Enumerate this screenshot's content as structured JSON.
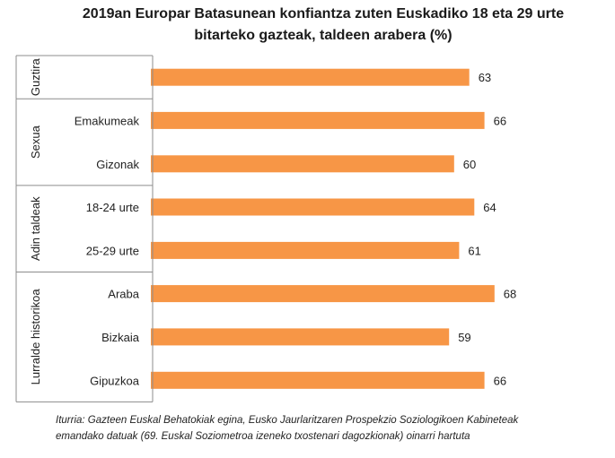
{
  "chart_data": {
    "type": "bar",
    "orientation": "horizontal",
    "title_line1": "2019an Europar Batasunean konfiantza zuten Euskadiko 18 eta 29 urte",
    "title_line2": "bitarteko gazteak, taldeen arabera (%)",
    "groups": [
      {
        "name": "Guztira",
        "categories": [
          ""
        ]
      },
      {
        "name": "Sexua",
        "categories": [
          "Emakumeak",
          "Gizonak"
        ]
      },
      {
        "name": "Adin taldeak",
        "categories": [
          "18-24 urte",
          "25-29 urte"
        ]
      },
      {
        "name": "Lurralde historikoa",
        "categories": [
          "Araba",
          "Bizkaia",
          "Gipuzkoa"
        ]
      }
    ],
    "categories": [
      "",
      "Emakumeak",
      "Gizonak",
      "18-24 urte",
      "25-29 urte",
      "Araba",
      "Bizkaia",
      "Gipuzkoa"
    ],
    "values": [
      63,
      66,
      60,
      64,
      61,
      68,
      59,
      66
    ],
    "data_labels": [
      "63",
      "66",
      "60",
      "64",
      "61",
      "68",
      "59",
      "66"
    ],
    "bar_color": "#F79646",
    "grid": false,
    "legend": "none"
  },
  "source_line1": "Iturria: Gazteen Euskal Behatokiak egina, Eusko Jaurlaritzaren Prospekzio Soziologikoen Kabineteak",
  "source_line2": "emandako datuak (69. Euskal Soziometroa izeneko txostenari dagozkionak) oinarri hartuta"
}
